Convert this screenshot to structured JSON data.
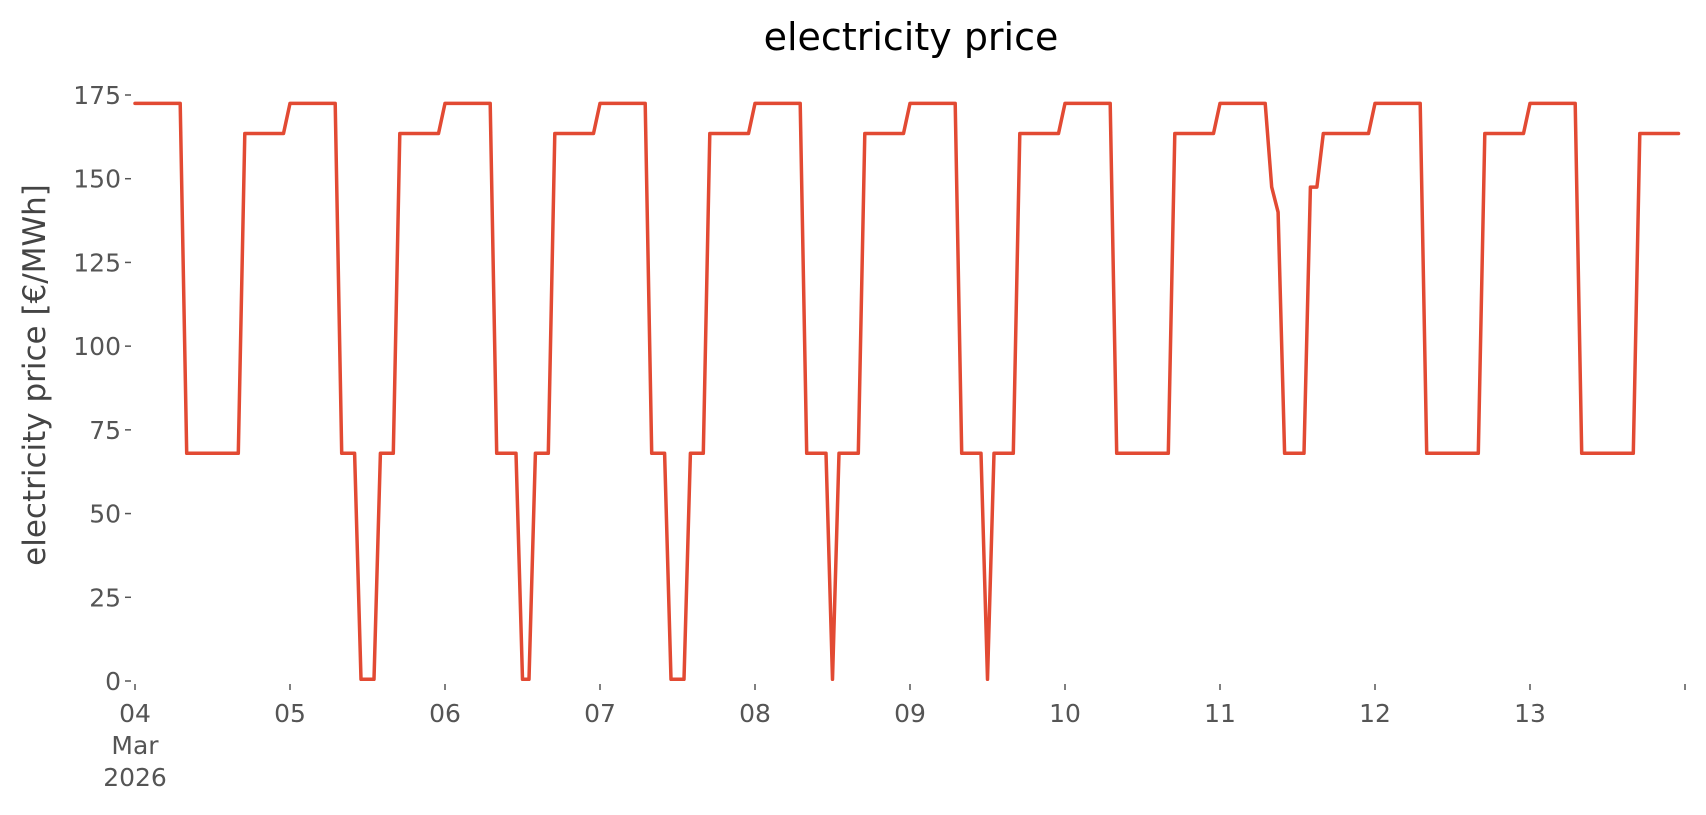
{
  "chart_data": {
    "type": "line",
    "title": "electricity price",
    "xlabel": "",
    "ylabel": "electricity price [€/MWh]",
    "ylim": [
      0,
      175
    ],
    "yticks": [
      0,
      25,
      50,
      75,
      100,
      125,
      150,
      175
    ],
    "xlim": [
      "2026-03-04T00:00",
      "2026-03-14T00:00"
    ],
    "xticks": [
      {
        "t": "2026-03-04T00:00",
        "label_lines": [
          "04",
          "Mar",
          "2026"
        ]
      },
      {
        "t": "2026-03-05T00:00",
        "label_lines": [
          "05"
        ]
      },
      {
        "t": "2026-03-06T00:00",
        "label_lines": [
          "06"
        ]
      },
      {
        "t": "2026-03-07T00:00",
        "label_lines": [
          "07"
        ]
      },
      {
        "t": "2026-03-08T00:00",
        "label_lines": [
          "08"
        ]
      },
      {
        "t": "2026-03-09T00:00",
        "label_lines": [
          "09"
        ]
      },
      {
        "t": "2026-03-10T00:00",
        "label_lines": [
          "10"
        ]
      },
      {
        "t": "2026-03-11T00:00",
        "label_lines": [
          "11"
        ]
      },
      {
        "t": "2026-03-12T00:00",
        "label_lines": [
          "12"
        ]
      },
      {
        "t": "2026-03-13T00:00",
        "label_lines": [
          "13"
        ]
      },
      {
        "t": "2026-03-14T00:00",
        "label_lines": []
      }
    ],
    "grid": false,
    "colors": {
      "series": "#E24A33",
      "text": "#555555"
    },
    "series": [
      {
        "color": "#E24A33",
        "points": [
          [
            "2026-03-04T00:00",
            172.5
          ],
          [
            "2026-03-04T07:00",
            172.5
          ],
          [
            "2026-03-04T08:00",
            68
          ],
          [
            "2026-03-04T16:00",
            68
          ],
          [
            "2026-03-04T17:00",
            163.5
          ],
          [
            "2026-03-04T23:00",
            163.5
          ],
          [
            "2026-03-05T00:00",
            172.5
          ],
          [
            "2026-03-05T07:00",
            172.5
          ],
          [
            "2026-03-05T08:00",
            68
          ],
          [
            "2026-03-05T10:00",
            68
          ],
          [
            "2026-03-05T11:00",
            0.5
          ],
          [
            "2026-03-05T13:00",
            0.5
          ],
          [
            "2026-03-05T14:00",
            68
          ],
          [
            "2026-03-05T16:00",
            68
          ],
          [
            "2026-03-05T17:00",
            163.5
          ],
          [
            "2026-03-05T23:00",
            163.5
          ],
          [
            "2026-03-06T00:00",
            172.5
          ],
          [
            "2026-03-06T07:00",
            172.5
          ],
          [
            "2026-03-06T08:00",
            68
          ],
          [
            "2026-03-06T11:00",
            68
          ],
          [
            "2026-03-06T12:00",
            0.5
          ],
          [
            "2026-03-06T13:00",
            0.5
          ],
          [
            "2026-03-06T14:00",
            68
          ],
          [
            "2026-03-06T16:00",
            68
          ],
          [
            "2026-03-06T17:00",
            163.5
          ],
          [
            "2026-03-06T23:00",
            163.5
          ],
          [
            "2026-03-07T00:00",
            172.5
          ],
          [
            "2026-03-07T07:00",
            172.5
          ],
          [
            "2026-03-07T08:00",
            68
          ],
          [
            "2026-03-07T10:00",
            68
          ],
          [
            "2026-03-07T11:00",
            0.5
          ],
          [
            "2026-03-07T13:00",
            0.5
          ],
          [
            "2026-03-07T14:00",
            68
          ],
          [
            "2026-03-07T16:00",
            68
          ],
          [
            "2026-03-07T17:00",
            163.5
          ],
          [
            "2026-03-07T23:00",
            163.5
          ],
          [
            "2026-03-08T00:00",
            172.5
          ],
          [
            "2026-03-08T07:00",
            172.5
          ],
          [
            "2026-03-08T08:00",
            68
          ],
          [
            "2026-03-08T11:00",
            68
          ],
          [
            "2026-03-08T12:00",
            0.5
          ],
          [
            "2026-03-08T13:00",
            68
          ],
          [
            "2026-03-08T16:00",
            68
          ],
          [
            "2026-03-08T17:00",
            163.5
          ],
          [
            "2026-03-08T23:00",
            163.5
          ],
          [
            "2026-03-09T00:00",
            172.5
          ],
          [
            "2026-03-09T07:00",
            172.5
          ],
          [
            "2026-03-09T08:00",
            68
          ],
          [
            "2026-03-09T11:00",
            68
          ],
          [
            "2026-03-09T12:00",
            0.5
          ],
          [
            "2026-03-09T13:00",
            68
          ],
          [
            "2026-03-09T16:00",
            68
          ],
          [
            "2026-03-09T17:00",
            163.5
          ],
          [
            "2026-03-09T23:00",
            163.5
          ],
          [
            "2026-03-10T00:00",
            172.5
          ],
          [
            "2026-03-10T07:00",
            172.5
          ],
          [
            "2026-03-10T08:00",
            68
          ],
          [
            "2026-03-10T16:00",
            68
          ],
          [
            "2026-03-10T17:00",
            163.5
          ],
          [
            "2026-03-10T23:00",
            163.5
          ],
          [
            "2026-03-11T00:00",
            172.5
          ],
          [
            "2026-03-11T07:00",
            172.5
          ],
          [
            "2026-03-11T08:00",
            147.5
          ],
          [
            "2026-03-11T09:00",
            140
          ],
          [
            "2026-03-11T10:00",
            68
          ],
          [
            "2026-03-11T13:00",
            68
          ],
          [
            "2026-03-11T14:00",
            147.5
          ],
          [
            "2026-03-11T15:00",
            147.5
          ],
          [
            "2026-03-11T16:00",
            163.5
          ],
          [
            "2026-03-11T23:00",
            163.5
          ],
          [
            "2026-03-12T00:00",
            172.5
          ],
          [
            "2026-03-12T07:00",
            172.5
          ],
          [
            "2026-03-12T08:00",
            68
          ],
          [
            "2026-03-12T16:00",
            68
          ],
          [
            "2026-03-12T17:00",
            163.5
          ],
          [
            "2026-03-12T23:00",
            163.5
          ],
          [
            "2026-03-13T00:00",
            172.5
          ],
          [
            "2026-03-13T07:00",
            172.5
          ],
          [
            "2026-03-13T08:00",
            68
          ],
          [
            "2026-03-13T16:00",
            68
          ],
          [
            "2026-03-13T17:00",
            163.5
          ],
          [
            "2026-03-13T23:00",
            163.5
          ]
        ]
      }
    ]
  }
}
